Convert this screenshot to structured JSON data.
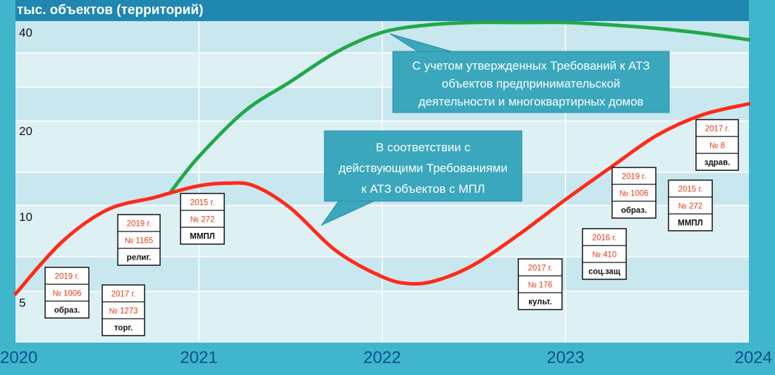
{
  "chart_data": {
    "type": "line",
    "ylabel": "тыс. объектов (территорий)",
    "x_ticks": [
      "2020",
      "2021",
      "2022",
      "2023",
      "2024"
    ],
    "y_ticks": [
      "5",
      "10",
      "20",
      "40"
    ],
    "xlim": [
      2020,
      2024
    ],
    "grid": true,
    "series": [
      {
        "color": "#21a84a",
        "x": [
          2020.85,
          2021.0,
          2021.25,
          2021.5,
          2021.75,
          2022.0,
          2022.25,
          2022.5,
          2022.75,
          2023.0,
          2023.25,
          2023.5,
          2023.75,
          2024.0
        ],
        "y": [
          13.0,
          17.0,
          24.0,
          30.0,
          36.0,
          40.0,
          41.5,
          42.0,
          42.0,
          42.0,
          41.5,
          40.8,
          39.8,
          38.5
        ]
      },
      {
        "color": "#ff2a1a",
        "x": [
          2020.0,
          2020.25,
          2020.5,
          2020.75,
          2020.85,
          2021.0,
          2021.15,
          2021.3,
          2021.5,
          2021.75,
          2022.0,
          2022.15,
          2022.3,
          2022.5,
          2022.75,
          2023.0,
          2023.25,
          2023.5,
          2023.75,
          2024.0
        ],
        "y": [
          5.5,
          8.5,
          10.8,
          12.2,
          12.8,
          13.6,
          13.9,
          13.6,
          11.0,
          8.0,
          6.5,
          6.1,
          6.3,
          7.2,
          9.0,
          12.0,
          15.8,
          19.5,
          23.3,
          25.5
        ]
      }
    ],
    "callouts": [
      {
        "id": "green",
        "text": [
          "С учетом утвержденных Требований к АТЗ",
          "объектов предпринимательской",
          "деятельности и многоквартирных домов"
        ]
      },
      {
        "id": "red",
        "text": [
          "В соответствии с",
          "действующими Требованиями",
          "к АТЗ объектов с МПЛ"
        ]
      }
    ],
    "annotations": [
      {
        "year": "2019 г.",
        "number": "№ 1006",
        "label": "образ."
      },
      {
        "year": "2017 г.",
        "number": "№ 1273",
        "label": "торг."
      },
      {
        "year": "2019 г.",
        "number": "№ 1165",
        "label": "религ."
      },
      {
        "year": "2015 г.",
        "number": "№ 272",
        "label": "ММПЛ"
      },
      {
        "year": "2017 г.",
        "number": "№ 176",
        "label": "культ."
      },
      {
        "year": "2016 г.",
        "number": "№ 410",
        "label": "соц.защ"
      },
      {
        "year": "2019 г.",
        "number": "№ 1006",
        "label": "образ."
      },
      {
        "year": "2015 г.",
        "number": "№ 272",
        "label": "ММПЛ"
      },
      {
        "year": "2017 г.",
        "number": "№ 8",
        "label": "здрав."
      }
    ]
  }
}
